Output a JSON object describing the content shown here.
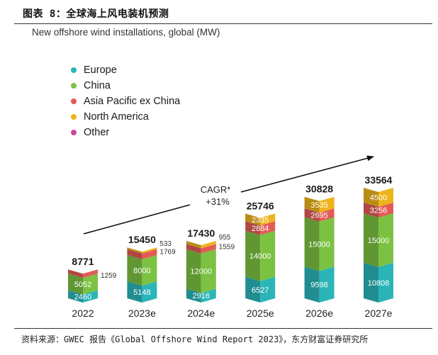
{
  "figure_title": "图表 8：全球海上风电装机预测",
  "source_note": "资料来源：GWEC 报告《Global Offshore Wind Report 2023》，东方财富证券研究所",
  "chart_data": {
    "type": "bar",
    "stacked": true,
    "title": "New offshore wind installations, global (MW)",
    "xlabel": "",
    "ylabel": "",
    "categories": [
      "2022",
      "2023e",
      "2024e",
      "2025e",
      "2026e",
      "2027e"
    ],
    "series": [
      {
        "name": "Europe",
        "color": "#2bb5b8",
        "values": [
          2460,
          5148,
          2916,
          6527,
          9598,
          10808
        ]
      },
      {
        "name": "China",
        "color": "#7cc242",
        "values": [
          5052,
          8000,
          12000,
          14000,
          15000,
          15000
        ]
      },
      {
        "name": "Asia Pacific ex China",
        "color": "#e35b57",
        "values": [
          1259,
          1769,
          1559,
          2884,
          2695,
          3256
        ]
      },
      {
        "name": "North America",
        "color": "#efb41b",
        "values": [
          0,
          533,
          955,
          2335,
          3535,
          4500
        ]
      },
      {
        "name": "Other",
        "color": "#c74a9b",
        "values": [
          0,
          0,
          0,
          0,
          0,
          0
        ]
      }
    ],
    "totals": [
      8771,
      15450,
      17430,
      25746,
      30828,
      33564
    ],
    "segment_labels": [
      {
        "Europe": "2460",
        "China": "5052",
        "Asia Pacific ex China": "1259",
        "North America": ""
      },
      {
        "Europe": "5148",
        "China": "8000",
        "Asia Pacific ex China": "1769",
        "North America": "533"
      },
      {
        "Europe": "2916",
        "China": "12000",
        "Asia Pacific ex China": "1559",
        "North America": "955"
      },
      {
        "Europe": "6527",
        "China": "14000",
        "Asia Pacific ex China": "2884",
        "North America": "2335"
      },
      {
        "Europe": "9598",
        "China": "15000",
        "Asia Pacific ex China": "2695",
        "North America": "3535"
      },
      {
        "Europe": "10808",
        "China": "15000",
        "Asia Pacific ex China": "3256",
        "North America": "4500"
      }
    ],
    "outside_label_years": [
      "2022",
      "2023e",
      "2024e"
    ],
    "annotation": {
      "line1": "CAGR*",
      "line2": "+31%"
    },
    "ylim": [
      0,
      35000
    ],
    "grid": false,
    "legend_position": "top-left"
  }
}
